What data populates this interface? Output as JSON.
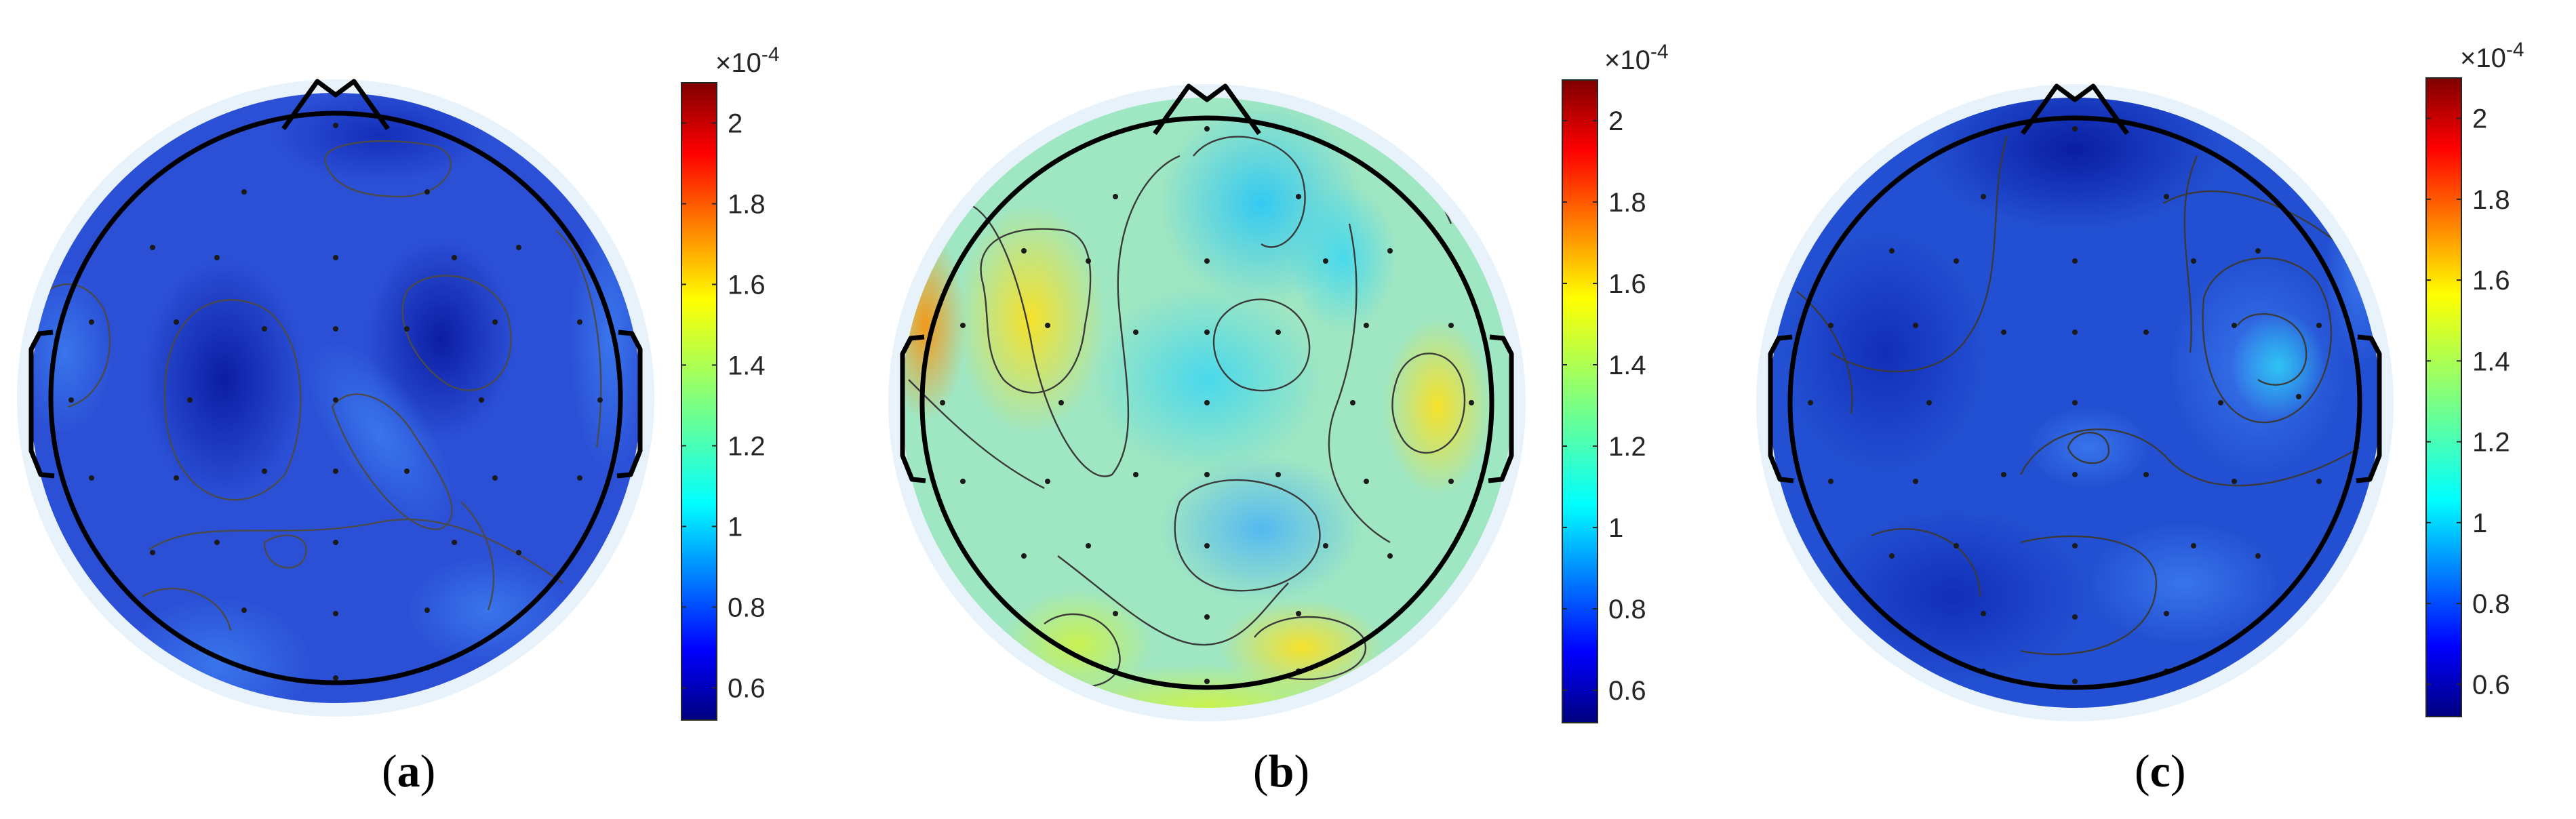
{
  "figure": {
    "panels": [
      {
        "label_open": "(",
        "label_letter": "a",
        "label_close": ")",
        "base_color": "#2b50d6"
      },
      {
        "label_open": "(",
        "label_letter": "b",
        "label_close": ")",
        "base_color": "#9fe6c2"
      },
      {
        "label_open": "(",
        "label_letter": "c",
        "label_close": ")",
        "base_color": "#2350d2"
      }
    ],
    "colorbar": {
      "multiplier": "×10",
      "exponent": "-4",
      "ticks": [
        "2",
        "1.8",
        "1.6",
        "1.4",
        "1.2",
        "1",
        "0.8",
        "0.6"
      ],
      "range": [
        0.52,
        2.1
      ],
      "colormap": "jet"
    },
    "colors": {
      "head_outline": "#000000",
      "contour": "#4a4a4a",
      "halo": "#e8f2fb",
      "electrode": "#1a1a1a"
    }
  }
}
